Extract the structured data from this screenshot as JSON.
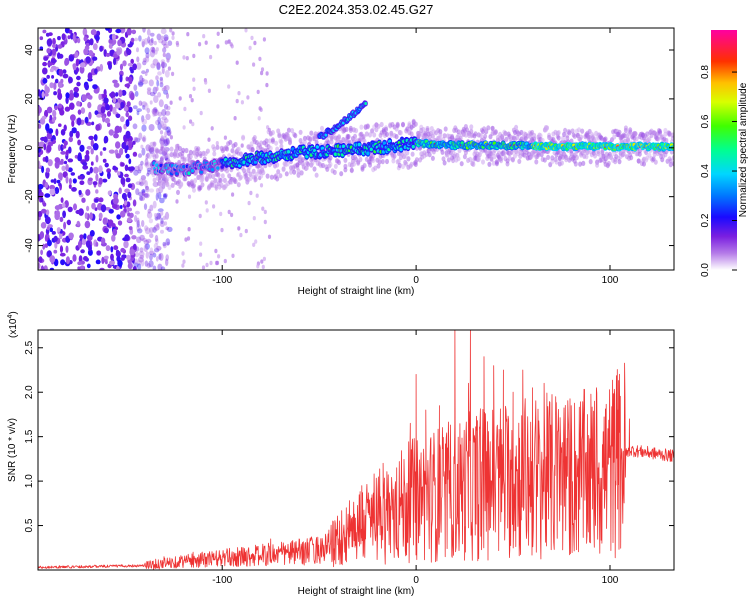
{
  "figure": {
    "title": "C2E2.2024.353.02.45.G27"
  },
  "chart_data": [
    {
      "type": "heatmap",
      "title": "C2E2.2024.353.02.45.G27",
      "xlabel": "Height of straight line (km)",
      "ylabel": "Frequency (Hz)",
      "xlim": [
        -195,
        133
      ],
      "ylim": [
        -50,
        49
      ],
      "xticks": [
        -100,
        0,
        100
      ],
      "yticks": [
        -40,
        -20,
        0,
        20,
        40
      ],
      "colorbar": {
        "label": "Normalized spectral amplitude",
        "range": [
          0,
          0.97
        ],
        "ticks": [
          0.0,
          0.2,
          0.4,
          0.6,
          0.8
        ],
        "colormap": [
          "#ffffff",
          "#7a1fe0",
          "#0000ff",
          "#00c8ff",
          "#00ff80",
          "#40ff00",
          "#ffff00",
          "#ff9900",
          "#ff0000",
          "#ff00a0"
        ]
      },
      "features": {
        "noise_region_x": [
          -195,
          -135
        ],
        "main_ridge": [
          {
            "x": -135,
            "y": -8
          },
          {
            "x": -120,
            "y": -9
          },
          {
            "x": -100,
            "y": -7
          },
          {
            "x": -80,
            "y": -4
          },
          {
            "x": -60,
            "y": -2
          },
          {
            "x": -40,
            "y": -1
          },
          {
            "x": -20,
            "y": 0
          },
          {
            "x": 0,
            "y": 2
          },
          {
            "x": 20,
            "y": 1
          },
          {
            "x": 50,
            "y": 1
          },
          {
            "x": 80,
            "y": 0.5
          },
          {
            "x": 110,
            "y": 0.5
          },
          {
            "x": 133,
            "y": 0.5
          }
        ],
        "branch": [
          {
            "x": -50,
            "y": 4
          },
          {
            "x": -40,
            "y": 9
          },
          {
            "x": -32,
            "y": 14
          },
          {
            "x": -26,
            "y": 19
          }
        ]
      }
    },
    {
      "type": "line",
      "xlabel": "Height of straight line (km)",
      "ylabel": "SNR (10 * v/v)",
      "scale_label": "(x10",
      "scale_exponent": "4",
      "xlim": [
        -195,
        133
      ],
      "ylim": [
        0,
        2.7
      ],
      "xticks": [
        -100,
        0,
        100
      ],
      "yticks": [
        0.5,
        1.0,
        1.5,
        2.0,
        2.5
      ],
      "ytick_labels": [
        "0.5",
        "1.0",
        "1.5",
        "2.0",
        "2.5"
      ],
      "series": [
        {
          "color": "#ee3333",
          "baseline": [
            {
              "x": -195,
              "y": 0.03
            },
            {
              "x": -140,
              "y": 0.05
            },
            {
              "x": -120,
              "y": 0.1
            },
            {
              "x": -90,
              "y": 0.15
            },
            {
              "x": -60,
              "y": 0.2
            },
            {
              "x": -45,
              "y": 0.25
            },
            {
              "x": -40,
              "y": 0.35
            },
            {
              "x": -30,
              "y": 0.5
            },
            {
              "x": -20,
              "y": 0.6
            },
            {
              "x": 0,
              "y": 0.8
            },
            {
              "x": 20,
              "y": 0.9
            },
            {
              "x": 40,
              "y": 1.0
            },
            {
              "x": 60,
              "y": 1.05
            },
            {
              "x": 80,
              "y": 1.05
            },
            {
              "x": 95,
              "y": 1.1
            },
            {
              "x": 105,
              "y": 1.2
            },
            {
              "x": 110,
              "y": 1.35
            },
            {
              "x": 133,
              "y": 1.28
            }
          ],
          "peaks": [
            {
              "x": -130,
              "y": 0.15
            },
            {
              "x": -115,
              "y": 0.2
            },
            {
              "x": -90,
              "y": 0.25
            },
            {
              "x": -75,
              "y": 0.35
            },
            {
              "x": -62,
              "y": 0.32
            },
            {
              "x": -45,
              "y": 0.45
            },
            {
              "x": -36,
              "y": 0.7
            },
            {
              "x": -28,
              "y": 0.95
            },
            {
              "x": -17,
              "y": 1.2
            },
            {
              "x": -10,
              "y": 1.15
            },
            {
              "x": -3,
              "y": 1.65
            },
            {
              "x": 0,
              "y": 2.2
            },
            {
              "x": 5,
              "y": 1.8
            },
            {
              "x": 12,
              "y": 1.85
            },
            {
              "x": 20,
              "y": 2.75
            },
            {
              "x": 27,
              "y": 2.1
            },
            {
              "x": 28,
              "y": 2.72
            },
            {
              "x": 35,
              "y": 2.4
            },
            {
              "x": 40,
              "y": 2.3
            },
            {
              "x": 45,
              "y": 2.25
            },
            {
              "x": 50,
              "y": 2.0
            },
            {
              "x": 55,
              "y": 2.25
            },
            {
              "x": 60,
              "y": 2.05
            },
            {
              "x": 66,
              "y": 2.1
            },
            {
              "x": 72,
              "y": 1.95
            },
            {
              "x": 80,
              "y": 1.85
            },
            {
              "x": 86,
              "y": 1.75
            },
            {
              "x": 92,
              "y": 1.9
            },
            {
              "x": 98,
              "y": 1.6
            },
            {
              "x": 104,
              "y": 1.8
            },
            {
              "x": 110,
              "y": 1.7
            }
          ],
          "dips": [
            {
              "x": 15,
              "y": 0.15
            },
            {
              "x": 62,
              "y": 0.2
            }
          ]
        }
      ]
    }
  ]
}
